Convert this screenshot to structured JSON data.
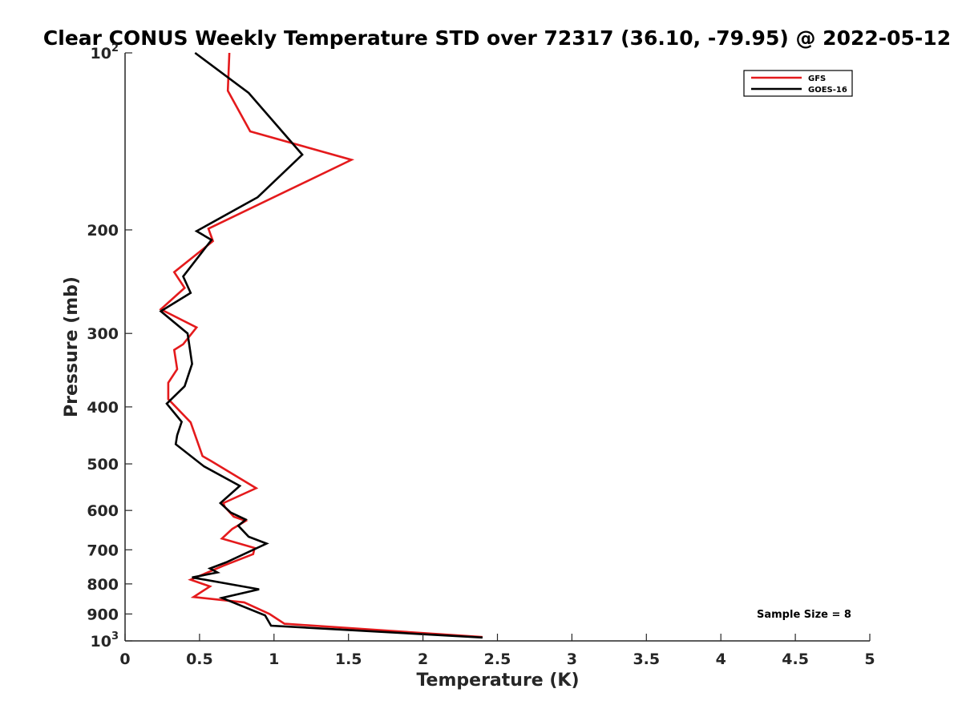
{
  "chart_data": {
    "type": "line",
    "title": "Clear CONUS Weekly Temperature STD over 72317 (36.10, -79.95) @ 2022-05-12",
    "xlabel": "Temperature (K)",
    "ylabel": "Pressure (mb)",
    "xlim": [
      0,
      5
    ],
    "ylim": [
      100,
      1000
    ],
    "y_scale": "log",
    "y_reversed": true,
    "x_ticks": [
      "0",
      "0.5",
      "1",
      "1.5",
      "2",
      "2.5",
      "3",
      "3.5",
      "4",
      "4.5",
      "5"
    ],
    "y_ticks": [
      {
        "value": 100,
        "base": "10",
        "exp": "2"
      },
      {
        "value": 200,
        "label": "200"
      },
      {
        "value": 300,
        "label": "300"
      },
      {
        "value": 400,
        "label": "400"
      },
      {
        "value": 500,
        "label": "500"
      },
      {
        "value": 600,
        "label": "600"
      },
      {
        "value": 700,
        "label": "700"
      },
      {
        "value": 800,
        "label": "800"
      },
      {
        "value": 900,
        "label": "900"
      },
      {
        "value": 1000,
        "base": "10",
        "exp": "3"
      }
    ],
    "legend_position": "top-right",
    "grid": false,
    "annotation": "Sample Size = 8",
    "series": [
      {
        "name": "GFS",
        "color": "#e41a1c",
        "points": [
          [
            0.7,
            100
          ],
          [
            0.69,
            116
          ],
          [
            0.84,
            136
          ],
          [
            1.52,
            152
          ],
          [
            0.56,
            199
          ],
          [
            0.59,
            209
          ],
          [
            0.33,
            236
          ],
          [
            0.4,
            251
          ],
          [
            0.24,
            273
          ],
          [
            0.48,
            293
          ],
          [
            0.39,
            313
          ],
          [
            0.33,
            320
          ],
          [
            0.35,
            345
          ],
          [
            0.29,
            364
          ],
          [
            0.29,
            388
          ],
          [
            0.44,
            425
          ],
          [
            0.52,
            485
          ],
          [
            0.58,
            495
          ],
          [
            0.88,
            550
          ],
          [
            0.66,
            583
          ],
          [
            0.67,
            592
          ],
          [
            0.73,
            615
          ],
          [
            0.81,
            625
          ],
          [
            0.72,
            645
          ],
          [
            0.65,
            670
          ],
          [
            0.87,
            695
          ],
          [
            0.86,
            712
          ],
          [
            0.66,
            745
          ],
          [
            0.44,
            787
          ],
          [
            0.57,
            808
          ],
          [
            0.46,
            842
          ],
          [
            0.8,
            860
          ],
          [
            0.97,
            900
          ],
          [
            1.07,
            935
          ],
          [
            2.4,
            985
          ]
        ]
      },
      {
        "name": "GOES-16",
        "color": "#000000",
        "points": [
          [
            0.47,
            100
          ],
          [
            0.83,
            117
          ],
          [
            1.19,
            149
          ],
          [
            0.89,
            176
          ],
          [
            0.48,
            201
          ],
          [
            0.58,
            208
          ],
          [
            0.39,
            240
          ],
          [
            0.44,
            256
          ],
          [
            0.24,
            275
          ],
          [
            0.42,
            300
          ],
          [
            0.45,
            338
          ],
          [
            0.4,
            369
          ],
          [
            0.28,
            395
          ],
          [
            0.38,
            424
          ],
          [
            0.35,
            447
          ],
          [
            0.34,
            463
          ],
          [
            0.53,
            505
          ],
          [
            0.77,
            545
          ],
          [
            0.64,
            583
          ],
          [
            0.71,
            605
          ],
          [
            0.81,
            622
          ],
          [
            0.76,
            637
          ],
          [
            0.83,
            665
          ],
          [
            0.95,
            683
          ],
          [
            0.68,
            735
          ],
          [
            0.57,
            753
          ],
          [
            0.62,
            765
          ],
          [
            0.45,
            780
          ],
          [
            0.9,
            817
          ],
          [
            0.65,
            845
          ],
          [
            0.94,
            905
          ],
          [
            0.98,
            942
          ],
          [
            2.4,
            987
          ]
        ]
      }
    ]
  }
}
